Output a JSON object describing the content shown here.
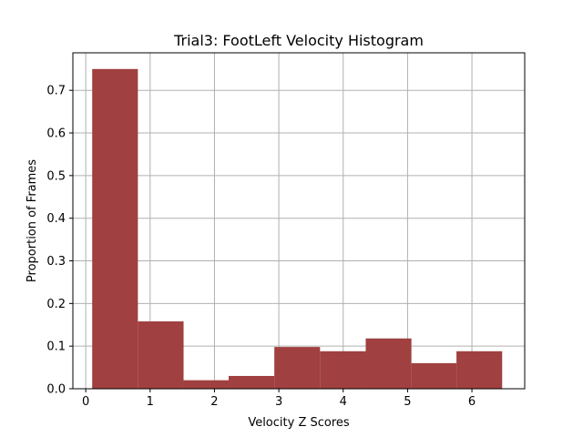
{
  "chart_data": {
    "type": "bar",
    "title": "Trial3: FootLeft Velocity Histogram",
    "xlabel": "Velocity Z Scores",
    "ylabel": "Proportion of Frames",
    "xlim": [
      -0.2,
      6.82
    ],
    "ylim": [
      0,
      0.788
    ],
    "xticks": [
      0,
      1,
      2,
      3,
      4,
      5,
      6
    ],
    "yticks": [
      0.0,
      0.1,
      0.2,
      0.3,
      0.4,
      0.5,
      0.6,
      0.7
    ],
    "ytick_labels": [
      "0.0",
      "0.1",
      "0.2",
      "0.3",
      "0.4",
      "0.5",
      "0.6",
      "0.7"
    ],
    "grid": true,
    "bar_color": "#a04040",
    "bins": [
      {
        "x0": 0.1,
        "x1": 0.81,
        "value": 0.75
      },
      {
        "x0": 0.81,
        "x1": 1.52,
        "value": 0.158
      },
      {
        "x0": 1.52,
        "x1": 2.22,
        "value": 0.02
      },
      {
        "x0": 2.22,
        "x1": 2.93,
        "value": 0.03
      },
      {
        "x0": 2.93,
        "x1": 3.64,
        "value": 0.098
      },
      {
        "x0": 3.64,
        "x1": 4.35,
        "value": 0.088
      },
      {
        "x0": 4.35,
        "x1": 5.06,
        "value": 0.118
      },
      {
        "x0": 5.06,
        "x1": 5.76,
        "value": 0.06
      },
      {
        "x0": 5.76,
        "x1": 6.47,
        "value": 0.088
      }
    ]
  }
}
